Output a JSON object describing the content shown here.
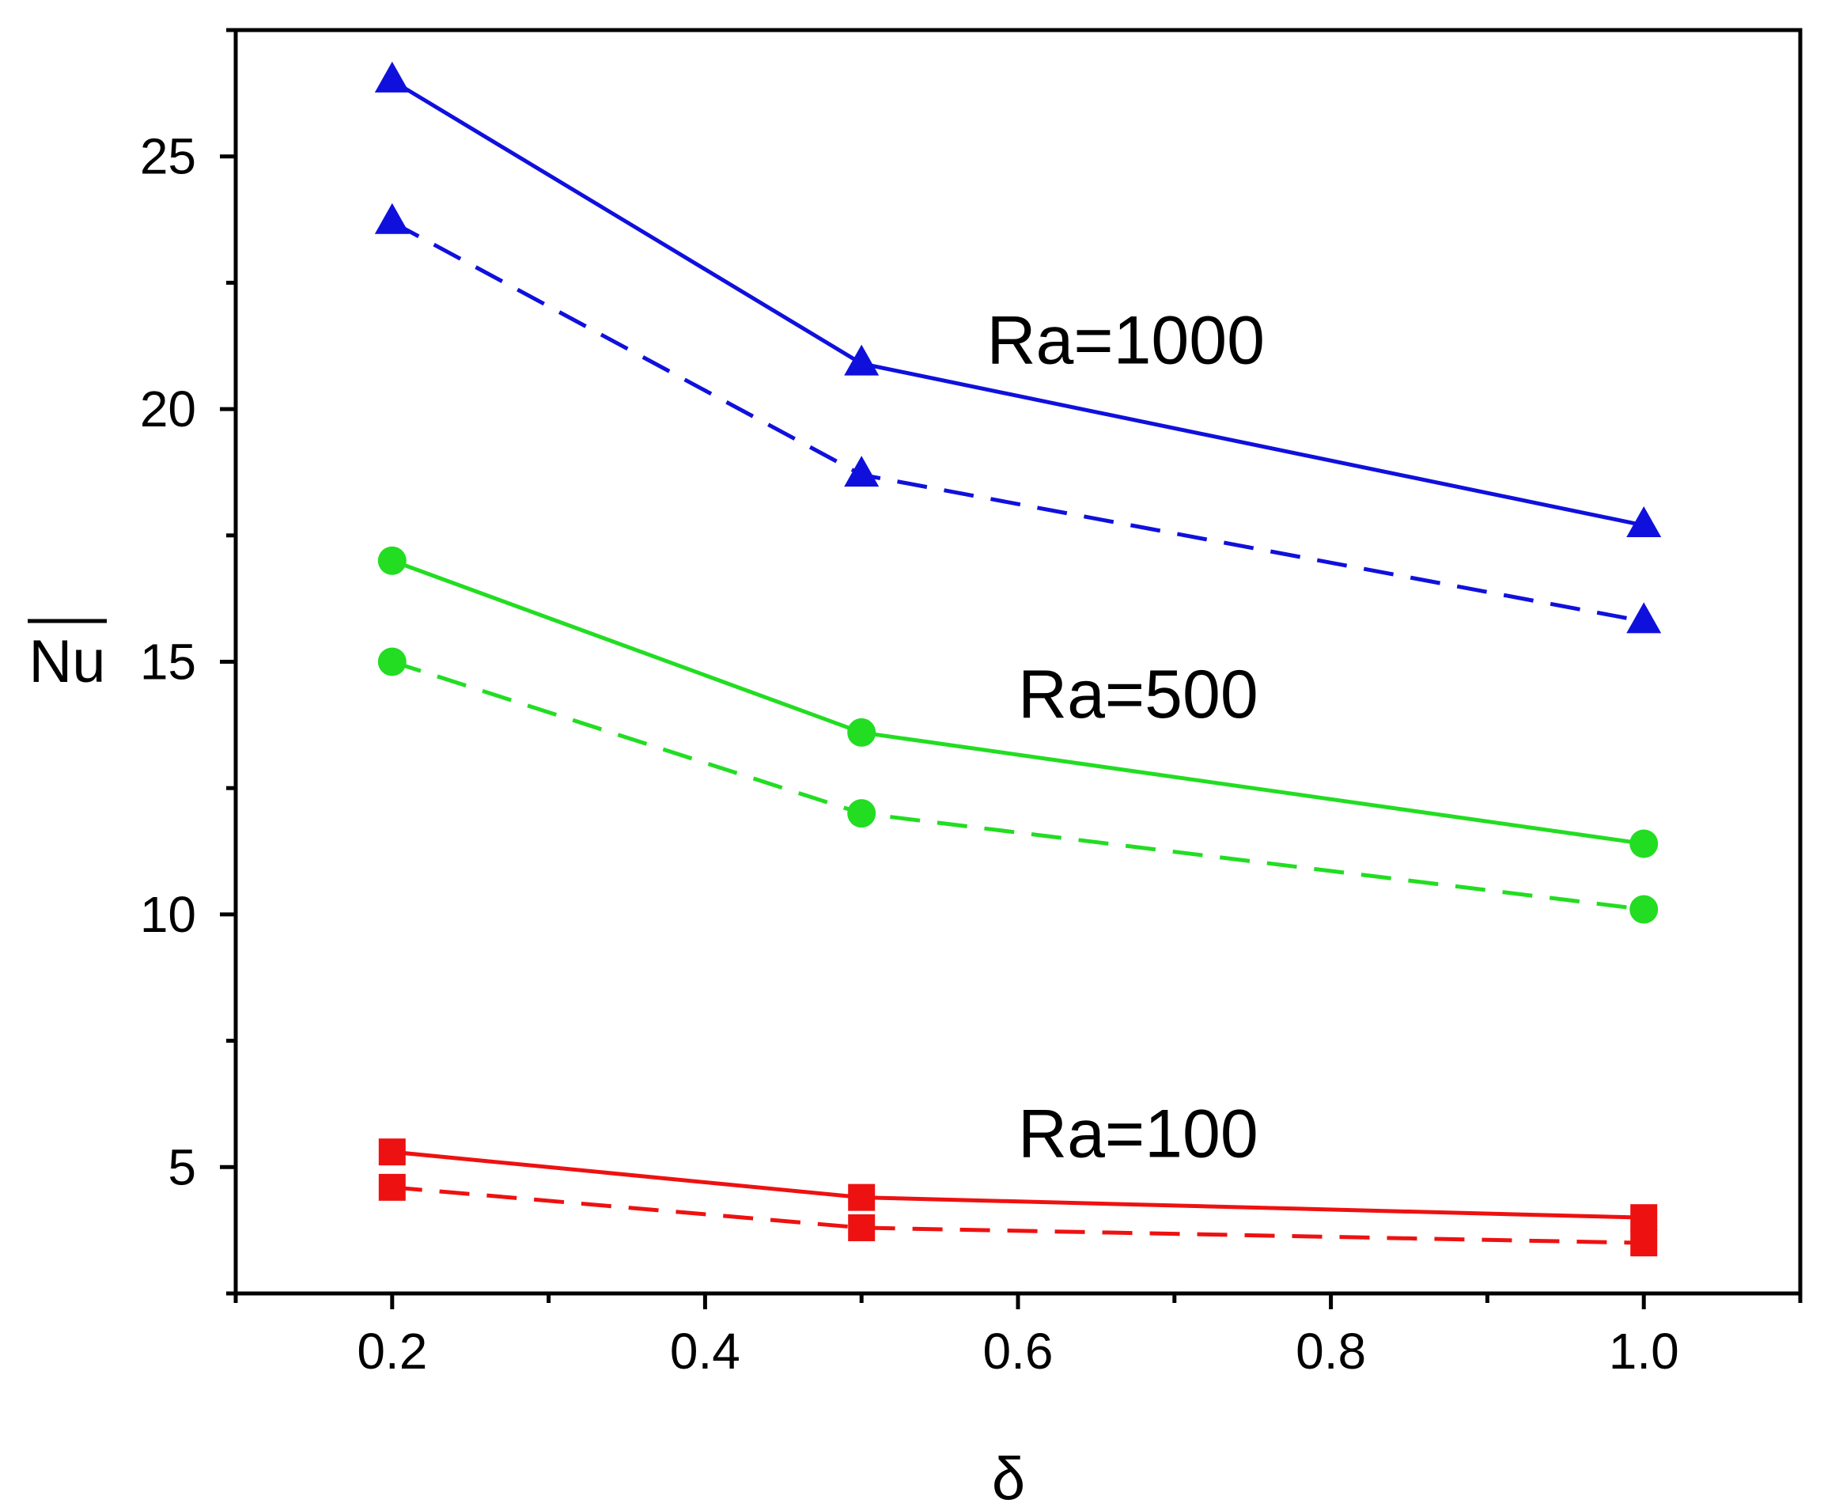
{
  "chart_data": {
    "type": "line",
    "title": "",
    "xlabel": "δ",
    "ylabel": "Nu",
    "xlim": [
      0.1,
      1.1
    ],
    "ylim": [
      2.5,
      27.5
    ],
    "x_ticks": [
      0.2,
      0.4,
      0.6,
      0.8,
      1.0
    ],
    "x_tick_labels": [
      "0.2",
      "0.4",
      "0.6",
      "0.8",
      "1.0"
    ],
    "y_ticks": [
      5,
      10,
      15,
      20,
      25
    ],
    "y_tick_labels": [
      "5",
      "10",
      "15",
      "20",
      "25"
    ],
    "grid": false,
    "x": [
      0.2,
      0.5,
      1.0
    ],
    "series": [
      {
        "name": "Ra=1000 (solid)",
        "color": "#1010dd",
        "dash": "solid",
        "marker": "triangle",
        "values": [
          26.5,
          20.9,
          17.7
        ]
      },
      {
        "name": "Ra=1000 (dashed)",
        "color": "#1010dd",
        "dash": "dashed",
        "marker": "triangle",
        "values": [
          23.7,
          18.7,
          15.8
        ]
      },
      {
        "name": "Ra=500 (solid)",
        "color": "#22dd22",
        "dash": "solid",
        "marker": "circle",
        "values": [
          17.0,
          13.6,
          11.4
        ]
      },
      {
        "name": "Ra=500 (dashed)",
        "color": "#22dd22",
        "dash": "dashed",
        "marker": "circle",
        "values": [
          15.0,
          12.0,
          10.1
        ]
      },
      {
        "name": "Ra=100 (solid)",
        "color": "#ee1111",
        "dash": "solid",
        "marker": "square",
        "values": [
          5.3,
          4.4,
          4.0
        ]
      },
      {
        "name": "Ra=100 (dashed)",
        "color": "#ee1111",
        "dash": "dashed",
        "marker": "square",
        "values": [
          4.6,
          3.8,
          3.5
        ]
      }
    ],
    "annotations": [
      {
        "text": "Ra=1000",
        "x": 0.58,
        "y": 20.9
      },
      {
        "text": "Ra=500",
        "x": 0.6,
        "y": 13.9
      },
      {
        "text": "Ra=100",
        "x": 0.6,
        "y": 5.2
      }
    ]
  }
}
